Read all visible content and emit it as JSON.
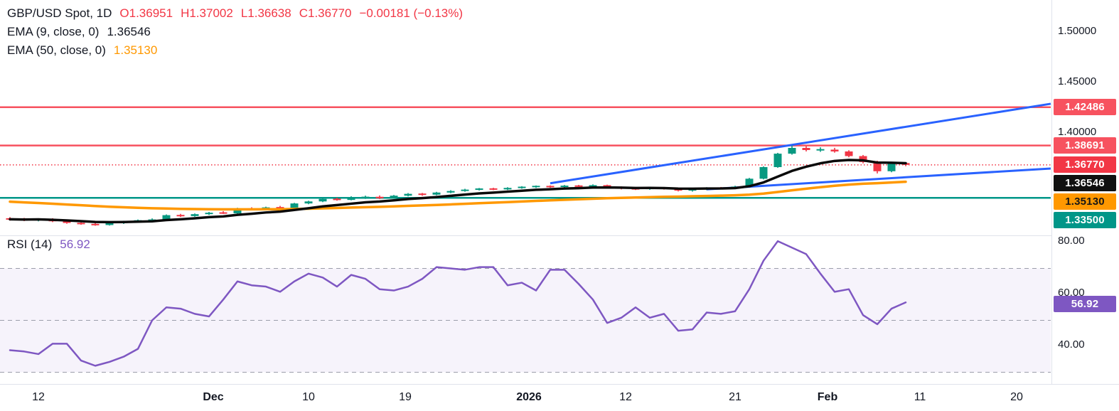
{
  "legend": {
    "title": "GBP/USD Spot, 1D",
    "open": "O1.36951",
    "high": "H1.37002",
    "low": "L1.36638",
    "close": "C1.36770",
    "change": "−0.00181 (−0.13%)",
    "ema9_label": "EMA (9, close, 0)",
    "ema9_value": "1.36546",
    "ema50_label": "EMA (50, close, 0)",
    "ema50_value": "1.35130",
    "rsi_label": "RSI (14)",
    "rsi_value": "56.92"
  },
  "colors": {
    "up": "#089981",
    "down": "#f23645",
    "ema9": "#0a0a0a",
    "ema50": "#ff9800",
    "trend": "#2962ff",
    "level_red": "#f7525f",
    "level_teal": "#009688",
    "last_price": "#f23645",
    "rsi": "#7e57c2",
    "rsi_grid": "#9b9eab",
    "rsi_band": "rgba(126,87,194,0.07)",
    "axis_text": "#131722",
    "separator": "#e0e3eb"
  },
  "chart_data": {
    "type": "candlestick",
    "title": "GBP/USD Spot, 1D with EMA(9), EMA(50) and RSI(14)",
    "price_pane": {
      "ylim": [
        1.299,
        1.531
      ],
      "yticks": [
        "1.50000",
        "1.45000",
        "1.40000"
      ],
      "candles": [
        [
          1.3145,
          1.316,
          1.3125,
          1.3138
        ],
        [
          1.3138,
          1.3152,
          1.312,
          1.3128
        ],
        [
          1.3128,
          1.3146,
          1.3118,
          1.3141
        ],
        [
          1.3141,
          1.3149,
          1.311,
          1.3118
        ],
        [
          1.3118,
          1.3126,
          1.3094,
          1.3102
        ],
        [
          1.3102,
          1.3116,
          1.3084,
          1.309
        ],
        [
          1.309,
          1.3104,
          1.3074,
          1.3081
        ],
        [
          1.3081,
          1.3109,
          1.3076,
          1.3101
        ],
        [
          1.3101,
          1.3124,
          1.3092,
          1.3116
        ],
        [
          1.3116,
          1.3136,
          1.3106,
          1.3128
        ],
        [
          1.3128,
          1.3147,
          1.3117,
          1.3131
        ],
        [
          1.3131,
          1.3186,
          1.3126,
          1.3179
        ],
        [
          1.3179,
          1.3192,
          1.3161,
          1.317
        ],
        [
          1.317,
          1.3196,
          1.3163,
          1.3189
        ],
        [
          1.3189,
          1.3211,
          1.3181,
          1.3203
        ],
        [
          1.3203,
          1.3219,
          1.3191,
          1.3197
        ],
        [
          1.3197,
          1.3252,
          1.3192,
          1.3244
        ],
        [
          1.3244,
          1.3257,
          1.3226,
          1.3236
        ],
        [
          1.3236,
          1.3263,
          1.3229,
          1.3256
        ],
        [
          1.3256,
          1.3271,
          1.3241,
          1.3249
        ],
        [
          1.3249,
          1.3301,
          1.3243,
          1.3295
        ],
        [
          1.3295,
          1.3322,
          1.3287,
          1.3315
        ],
        [
          1.3315,
          1.3347,
          1.3308,
          1.334
        ],
        [
          1.334,
          1.3352,
          1.3322,
          1.333
        ],
        [
          1.333,
          1.3366,
          1.3326,
          1.3349
        ],
        [
          1.3349,
          1.3372,
          1.334,
          1.3361
        ],
        [
          1.3361,
          1.3374,
          1.3338,
          1.3346
        ],
        [
          1.3346,
          1.3379,
          1.3341,
          1.3372
        ],
        [
          1.3372,
          1.3398,
          1.3365,
          1.339
        ],
        [
          1.339,
          1.3399,
          1.3371,
          1.3382
        ],
        [
          1.3382,
          1.341,
          1.3376,
          1.3403
        ],
        [
          1.3403,
          1.3426,
          1.3396,
          1.3418
        ],
        [
          1.3418,
          1.344,
          1.3411,
          1.3432
        ],
        [
          1.3432,
          1.3448,
          1.3423,
          1.3441
        ],
        [
          1.3441,
          1.345,
          1.3426,
          1.3434
        ],
        [
          1.3434,
          1.3456,
          1.3428,
          1.3449
        ],
        [
          1.3449,
          1.3466,
          1.3441,
          1.3459
        ],
        [
          1.3459,
          1.3473,
          1.3449,
          1.3466
        ],
        [
          1.3466,
          1.3474,
          1.345,
          1.3458
        ],
        [
          1.3458,
          1.3478,
          1.3451,
          1.3471
        ],
        [
          1.3471,
          1.3479,
          1.3453,
          1.3462
        ],
        [
          1.3462,
          1.3484,
          1.3455,
          1.3476
        ],
        [
          1.3476,
          1.3481,
          1.345,
          1.3458
        ],
        [
          1.3458,
          1.3464,
          1.3434,
          1.3442
        ],
        [
          1.3442,
          1.3456,
          1.3428,
          1.3436
        ],
        [
          1.3436,
          1.3459,
          1.343,
          1.3453
        ],
        [
          1.3453,
          1.3458,
          1.3432,
          1.344
        ],
        [
          1.344,
          1.3447,
          1.3414,
          1.3422
        ],
        [
          1.3422,
          1.3442,
          1.3412,
          1.3436
        ],
        [
          1.3436,
          1.3456,
          1.3427,
          1.345
        ],
        [
          1.345,
          1.3458,
          1.3436,
          1.3445
        ],
        [
          1.3445,
          1.347,
          1.3438,
          1.3462
        ],
        [
          1.3462,
          1.3548,
          1.3455,
          1.354
        ],
        [
          1.354,
          1.3662,
          1.3533,
          1.3655
        ],
        [
          1.3655,
          1.3796,
          1.3648,
          1.3788
        ],
        [
          1.3788,
          1.3869,
          1.3778,
          1.3845
        ],
        [
          1.3845,
          1.3863,
          1.381,
          1.3824
        ],
        [
          1.3824,
          1.3851,
          1.3806,
          1.3828
        ],
        [
          1.3828,
          1.3846,
          1.3798,
          1.381
        ],
        [
          1.381,
          1.3822,
          1.3752,
          1.3764
        ],
        [
          1.3764,
          1.3775,
          1.3692,
          1.3705
        ],
        [
          1.3705,
          1.3718,
          1.3592,
          1.3614
        ],
        [
          1.3614,
          1.3697,
          1.3604,
          1.369
        ],
        [
          1.36951,
          1.37002,
          1.36638,
          1.3677
        ]
      ],
      "levels": [
        {
          "price": 1.42486,
          "label": "1.42486",
          "color_key": "level_red"
        },
        {
          "price": 1.38691,
          "label": "1.38691",
          "color_key": "level_red"
        },
        {
          "price": 1.335,
          "label": "1.33500",
          "color_key": "level_teal"
        }
      ],
      "last_price": {
        "price": 1.3677,
        "label": "1.36770"
      },
      "ema9": {
        "period": 9,
        "label": "1.36546"
      },
      "ema50": {
        "period": 50,
        "seed": 1.332,
        "label": "1.35130"
      },
      "trendlines": [
        {
          "from_bar": 38,
          "from_price": 1.3495,
          "to_bar": 73.2,
          "to_price": 1.4282
        },
        {
          "from_bar": 49,
          "from_price": 1.3435,
          "to_bar": 73.2,
          "to_price": 1.3641
        }
      ],
      "tags": [
        {
          "label": "1.42486",
          "bg": "#f7525f",
          "fg": "#ffffff"
        },
        {
          "label": "1.38691",
          "bg": "#f7525f",
          "fg": "#ffffff"
        },
        {
          "label": "1.36770",
          "bg": "#f23645",
          "fg": "#ffffff"
        },
        {
          "label": "1.36546",
          "bg": "#101010",
          "fg": "#ffffff"
        },
        {
          "label": "1.35130",
          "bg": "#ff9800",
          "fg": "#161616"
        },
        {
          "label": "1.33500",
          "bg": "#009688",
          "fg": "#ffffff"
        }
      ]
    },
    "rsi_pane": {
      "ylim": [
        25.5,
        82.7
      ],
      "yticks": [
        "80.00",
        "60.00",
        "40.00"
      ],
      "band": [
        30,
        70
      ],
      "midline": 50,
      "values": [
        38.5,
        38,
        37,
        41,
        41,
        34.5,
        32.5,
        34,
        36,
        39,
        50,
        55,
        54.5,
        52.5,
        51.5,
        58,
        65,
        63.5,
        63,
        61,
        65,
        68,
        66.5,
        63,
        67.5,
        66,
        62,
        61.5,
        63,
        66,
        70.5,
        70,
        69.5,
        70.5,
        70.5,
        63.5,
        64.5,
        61.5,
        69.5,
        69.5,
        64,
        58,
        49,
        51,
        55,
        51,
        52.5,
        46,
        46.5,
        53,
        52.5,
        53.5,
        62,
        73,
        80.5,
        78,
        75.5,
        68,
        61,
        62,
        52,
        48.5,
        54.5,
        56.92
      ],
      "tag": {
        "label": "56.92",
        "bg": "#7e57c2",
        "fg": "#ffffff",
        "value": 56.92
      }
    },
    "time_ticks": [
      {
        "label": "12",
        "bar": 2
      },
      {
        "label": "Dec",
        "bar": 14.3,
        "major": true
      },
      {
        "label": "10",
        "bar": 21
      },
      {
        "label": "19",
        "bar": 27.8
      },
      {
        "label": "2026",
        "bar": 36.5,
        "major": true
      },
      {
        "label": "12",
        "bar": 43.3
      },
      {
        "label": "21",
        "bar": 51
      },
      {
        "label": "Feb",
        "bar": 57.5,
        "major": true
      },
      {
        "label": "11",
        "bar": 64
      },
      {
        "label": "20",
        "bar": 70.8
      }
    ]
  }
}
